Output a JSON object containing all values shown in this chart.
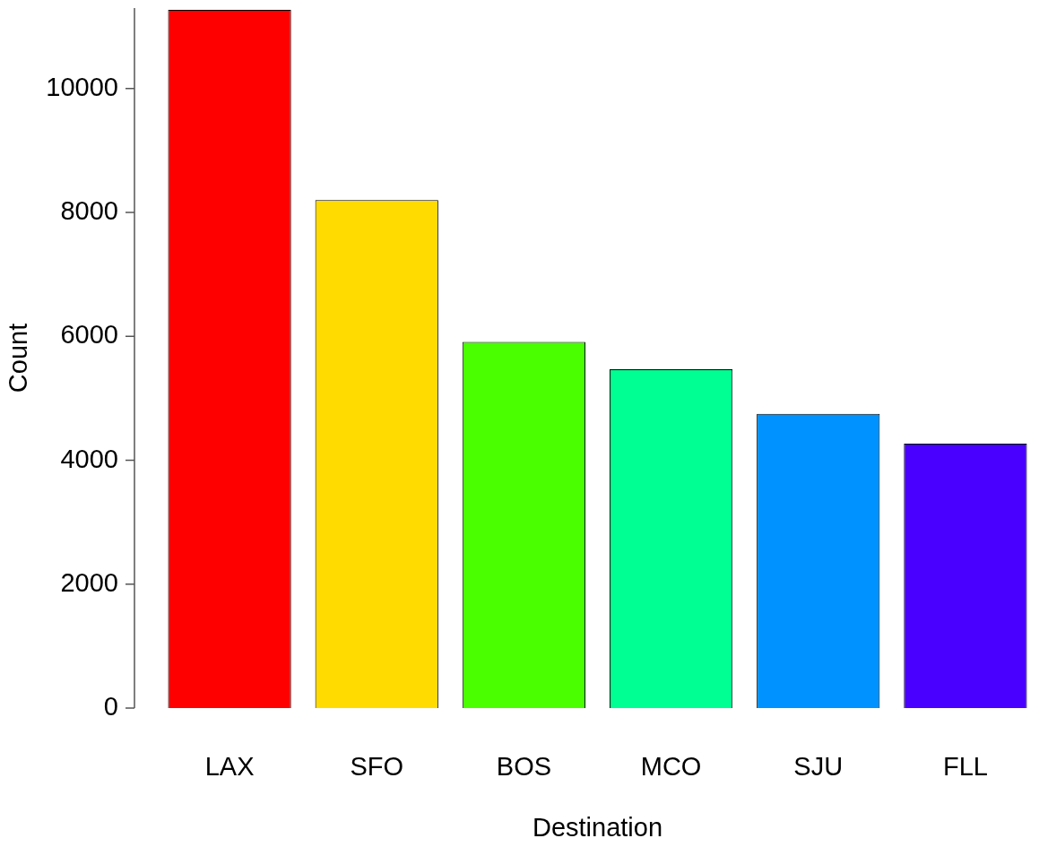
{
  "chart_data": {
    "type": "bar",
    "xlabel": "Destination",
    "ylabel": "Count",
    "categories": [
      "LAX",
      "SFO",
      "BOS",
      "MCO",
      "SJU",
      "FLL"
    ],
    "values": [
      11270,
      8200,
      5910,
      5470,
      4750,
      4270
    ],
    "colors": [
      "#ff0000",
      "#ffdb00",
      "#49ff00",
      "#00ff92",
      "#0092ff",
      "#4900ff"
    ],
    "ylim": [
      0,
      11300
    ],
    "yticks": [
      0,
      2000,
      4000,
      6000,
      8000,
      10000
    ]
  }
}
